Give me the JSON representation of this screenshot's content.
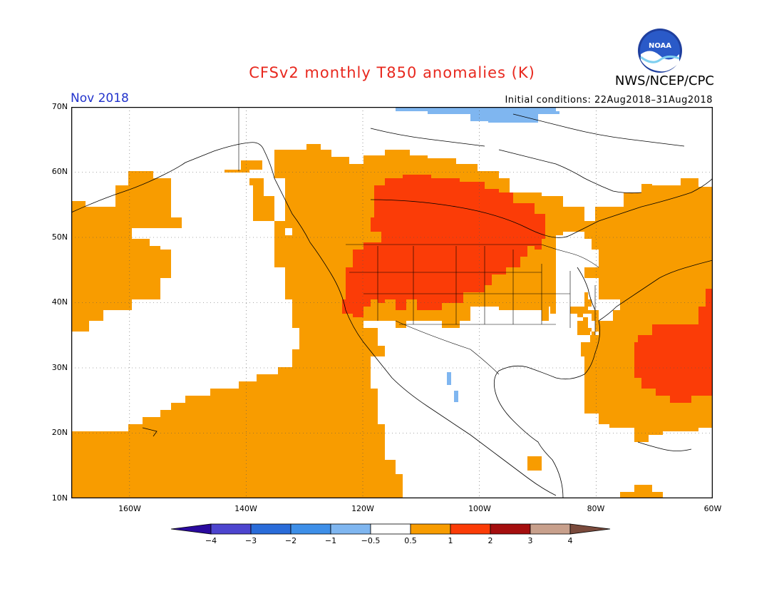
{
  "title": "CFSv2 monthly T850 anomalies (K)",
  "agency": "NWS/NCEP/CPC",
  "logo_text": "NOAA",
  "valid_month": "Nov 2018",
  "initial_conditions": "Initial conditions: 22Aug2018–31Aug2018",
  "map": {
    "lon_range": [
      -170,
      -60
    ],
    "lat_range": [
      10,
      70
    ],
    "lat_labels": [
      "70N",
      "60N",
      "50N",
      "40N",
      "30N",
      "20N",
      "10N"
    ],
    "lon_labels": [
      "160W",
      "140W",
      "120W",
      "100W",
      "80W",
      "60W"
    ]
  },
  "colorbar": {
    "labels": [
      "−4",
      "−3",
      "−2",
      "−1",
      "−0.5",
      "0.5",
      "1",
      "2",
      "3",
      "4"
    ],
    "colors": [
      "#2a0a9e",
      "#4d45cf",
      "#2a6cd9",
      "#3e8fe8",
      "#7fb6f0",
      "#ffffff",
      "#f89c00",
      "#fb3c07",
      "#a50e0e",
      "#c8a08c",
      "#7a4a3c"
    ]
  },
  "colors": {
    "warm": "#f89c00",
    "hot": "#fb3c07",
    "cool": "#7fb6f0"
  }
}
